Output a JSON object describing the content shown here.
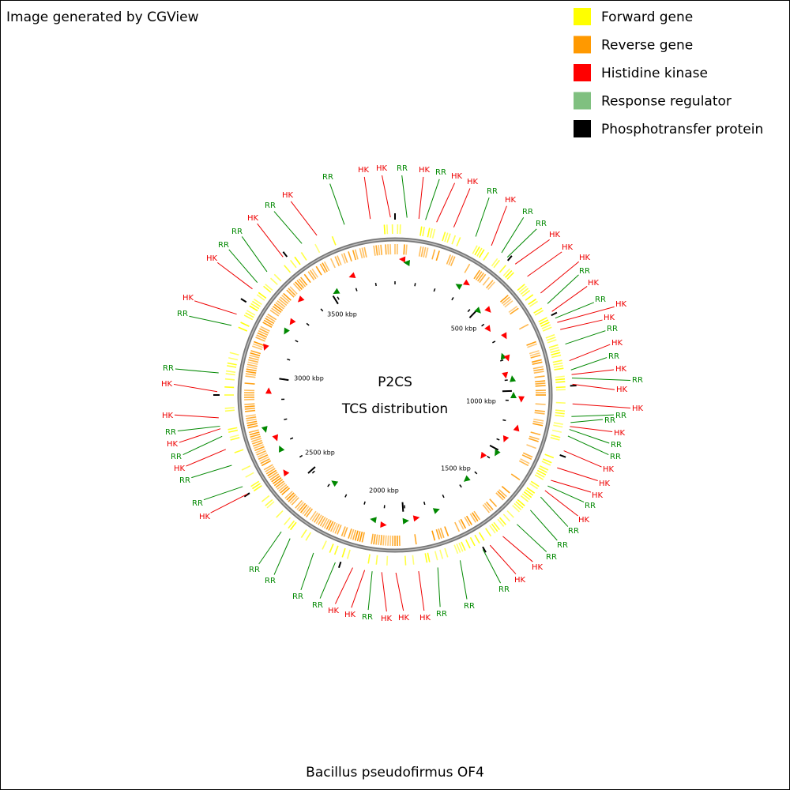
{
  "header": {
    "credit": "Image generated by CGView"
  },
  "legend": [
    {
      "label": "Forward gene",
      "color": "#ffff00"
    },
    {
      "label": "Reverse gene",
      "color": "#ff9900"
    },
    {
      "label": "Histidine kinase",
      "color": "#ff0000"
    },
    {
      "label": "Response regulator",
      "color": "#80c080"
    },
    {
      "label": "Phosphotransfer protein",
      "color": "#000000"
    }
  ],
  "map": {
    "title": "P2CS",
    "subtitle": "TCS distribution",
    "ruler_labels": [
      "500 kbp",
      "1000 kbp",
      "1500 kbp",
      "2000 kbp",
      "2500 kbp",
      "3000 kbp",
      "3500 kbp"
    ],
    "feature_labels": [
      "HK",
      "HK",
      "RR",
      "HK",
      "RR",
      "HK",
      "HK",
      "RR",
      "HK",
      "RR",
      "RR",
      "HK",
      "HK",
      "HK",
      "RR",
      "HK",
      "RR",
      "HK",
      "HK",
      "RR",
      "HK",
      "RR",
      "HK",
      "RR",
      "HK",
      "HK",
      "RR",
      "RR",
      "HK",
      "RR",
      "RR",
      "HK",
      "HK",
      "HK",
      "RR",
      "HK",
      "RR",
      "RR",
      "RR",
      "HK",
      "HK",
      "RR",
      "RR",
      "RR",
      "HK",
      "HK",
      "HK",
      "RR",
      "HK",
      "HK",
      "RR",
      "RR",
      "RR",
      "RR",
      "HK",
      "RR",
      "RR",
      "HK",
      "RR",
      "HK",
      "RR",
      "HK",
      "HK",
      "RR",
      "RR",
      "HK",
      "HK",
      "RR",
      "RR",
      "HK",
      "RR",
      "HK",
      "RR"
    ]
  },
  "footer": {
    "organism": "Bacillus pseudofirmus OF4"
  }
}
